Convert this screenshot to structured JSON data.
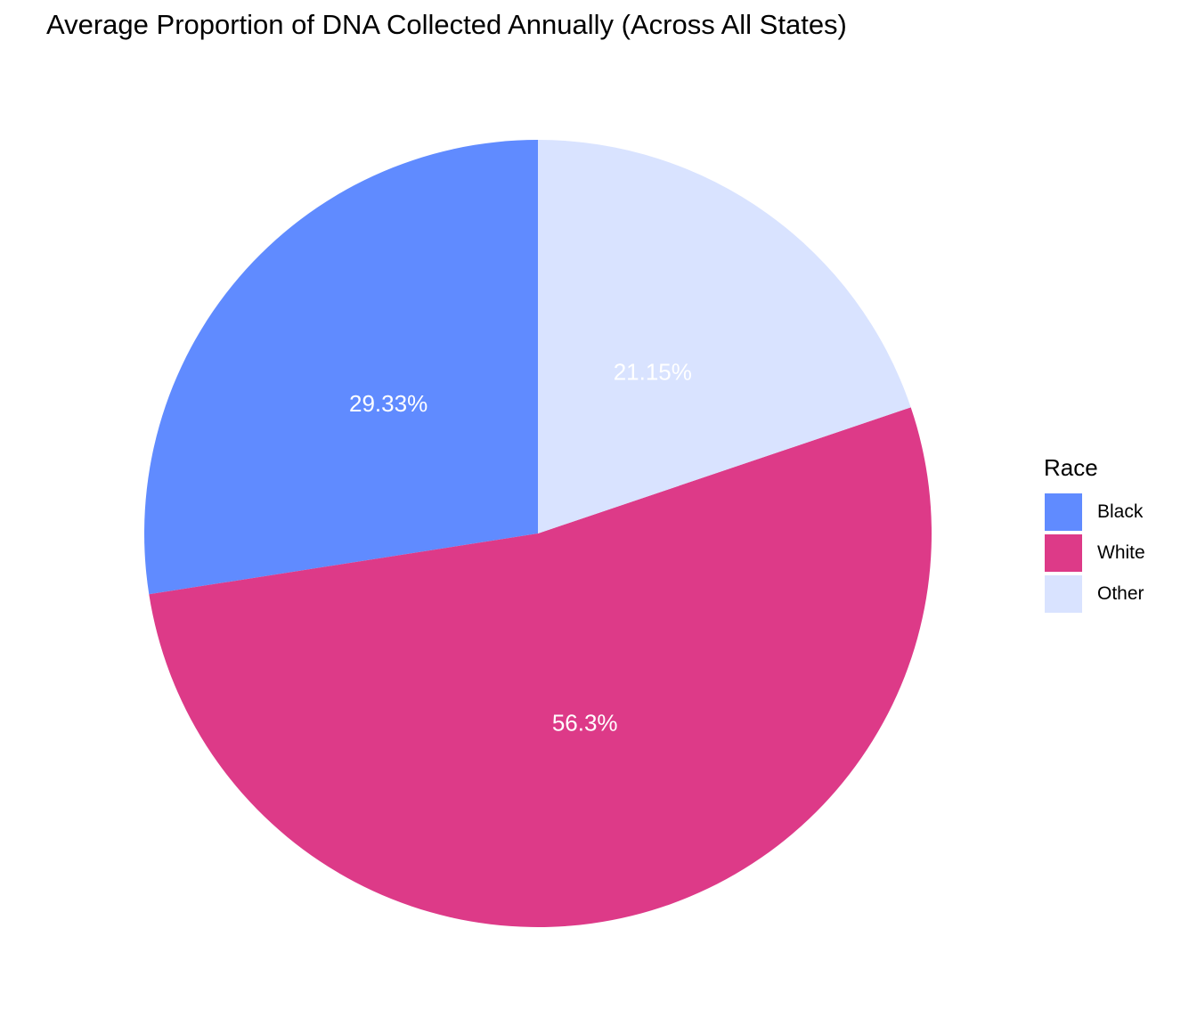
{
  "chart_data": {
    "type": "pie",
    "title": "Average Proportion of DNA Collected Annually (Across All States)",
    "legend_title": "Race",
    "legend_position": "right",
    "slices": [
      {
        "label": "Black",
        "value": 29.33,
        "display": "29.33%",
        "color": "#608BFF"
      },
      {
        "label": "White",
        "value": 56.3,
        "display": "56.3%",
        "color": "#DD3A88"
      },
      {
        "label": "Other",
        "value": 21.15,
        "display": "21.15%",
        "color": "#D9E3FF"
      }
    ]
  }
}
